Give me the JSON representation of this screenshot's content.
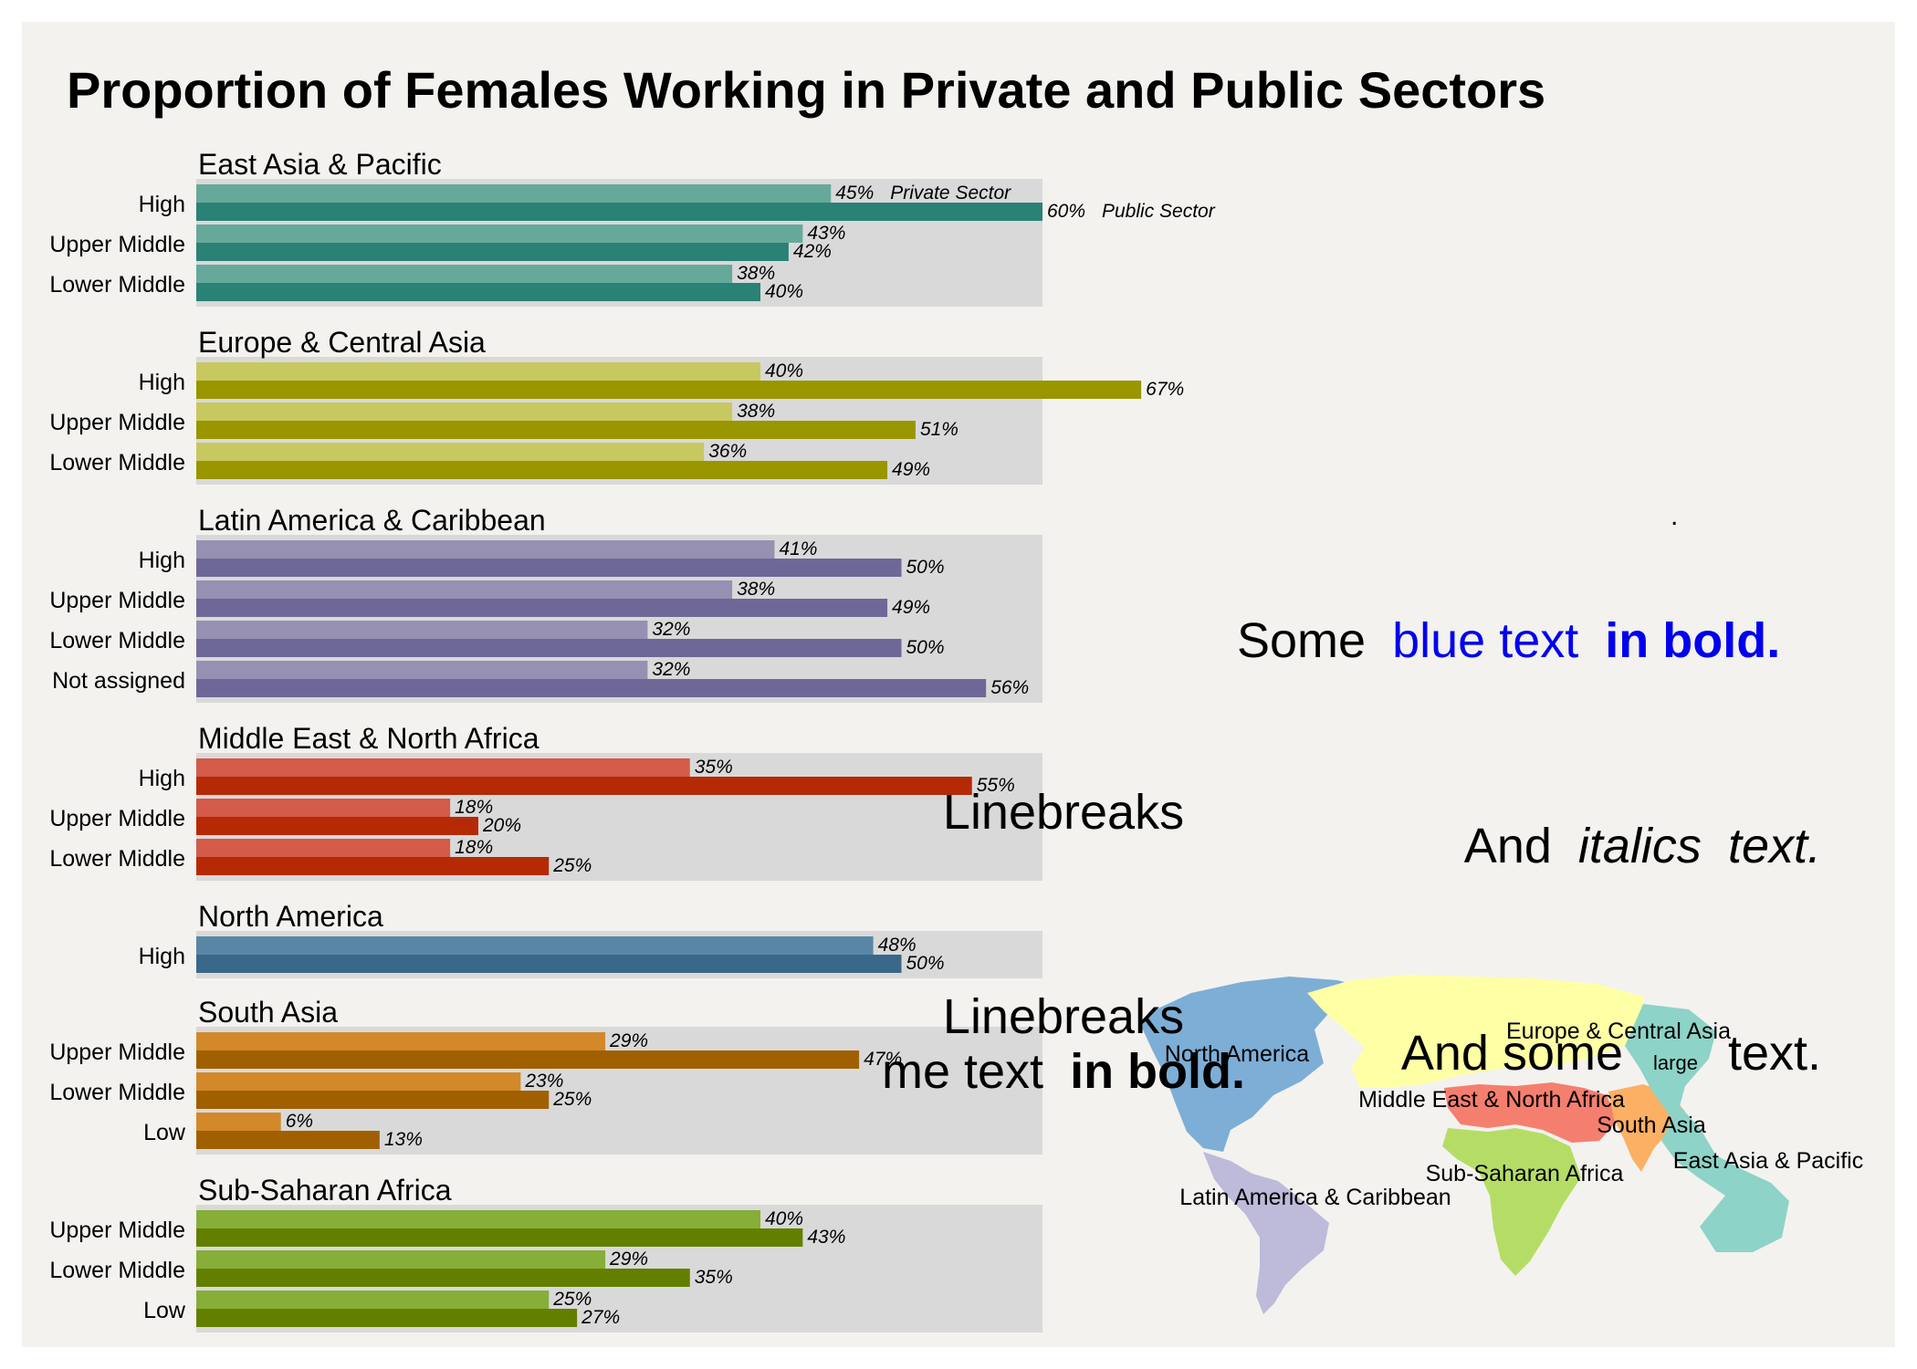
{
  "colors": {
    "background": "#f3f2ef",
    "panel": "#d9d9d9",
    "blue_text": "#0000ee"
  },
  "chart_data": {
    "type": "bar",
    "title": "Proportion of Females Working in Private and Public Sectors",
    "xlim": [
      0,
      60
    ],
    "grid": false,
    "series_names": [
      "Private Sector",
      "Public Sector"
    ],
    "value_suffix": "%",
    "legend_placement": "inline, next to the first pair of bars",
    "panels": [
      {
        "name": "East Asia & Pacific",
        "colors": [
          "#66a99b",
          "#2a8175"
        ],
        "categories": [
          "High",
          "Upper Middle",
          "Lower Middle"
        ],
        "private": [
          45,
          43,
          38
        ],
        "public": [
          60,
          42,
          40
        ]
      },
      {
        "name": "Europe & Central Asia",
        "colors": [
          "#c8c860",
          "#999600"
        ],
        "categories": [
          "High",
          "Upper Middle",
          "Lower Middle"
        ],
        "private": [
          40,
          38,
          36
        ],
        "public": [
          67,
          51,
          49
        ]
      },
      {
        "name": "Latin America & Caribbean",
        "colors": [
          "#9690b2",
          "#6e6898"
        ],
        "categories": [
          "High",
          "Upper Middle",
          "Lower Middle",
          "Not assigned"
        ],
        "private": [
          41,
          38,
          32,
          32
        ],
        "public": [
          50,
          49,
          50,
          56
        ]
      },
      {
        "name": "Middle East & North Africa",
        "colors": [
          "#d45a4a",
          "#b52a05"
        ],
        "categories": [
          "High",
          "Upper Middle",
          "Lower Middle"
        ],
        "private": [
          35,
          18,
          18
        ],
        "public": [
          55,
          20,
          25
        ]
      },
      {
        "name": "North America",
        "colors": [
          "#5a86a6",
          "#3a6888"
        ],
        "categories": [
          "High"
        ],
        "private": [
          48
        ],
        "public": [
          50
        ]
      },
      {
        "name": "South Asia",
        "colors": [
          "#d3882a",
          "#a06000"
        ],
        "categories": [
          "Upper Middle",
          "Lower Middle",
          "Low"
        ],
        "private": [
          29,
          23,
          6
        ],
        "public": [
          47,
          25,
          13
        ]
      },
      {
        "name": "Sub-Saharan Africa",
        "colors": [
          "#86ae38",
          "#637f00"
        ],
        "categories": [
          "Upper Middle",
          "Lower Middle",
          "Low"
        ],
        "private": [
          40,
          29,
          25
        ],
        "public": [
          43,
          35,
          27
        ]
      }
    ],
    "annotations": {
      "dot": ".",
      "some": "Some",
      "blue_text": "blue text",
      "in_bold": "in bold.",
      "linebreaks_1": "Linebreaks",
      "and": "And",
      "italics": "italics",
      "text_dot": "text.",
      "linebreaks_2": "Linebreaks",
      "me_text": "me text",
      "in_bold_2": "in bold.",
      "and_some": "And some",
      "large": "large",
      "text_dot_2": "text."
    },
    "map": {
      "regions": [
        {
          "name": "North America",
          "color": "#7daed6"
        },
        {
          "name": "Europe & Central Asia",
          "color": "#ffffa6"
        },
        {
          "name": "Middle East & North Africa",
          "color": "#f57f6e"
        },
        {
          "name": "South Asia",
          "color": "#fcb064"
        },
        {
          "name": "Sub-Saharan Africa",
          "color": "#b5dd66"
        },
        {
          "name": "East Asia & Pacific",
          "color": "#8dd3c7"
        },
        {
          "name": "Latin America & Caribbean",
          "color": "#bebada"
        }
      ]
    }
  }
}
